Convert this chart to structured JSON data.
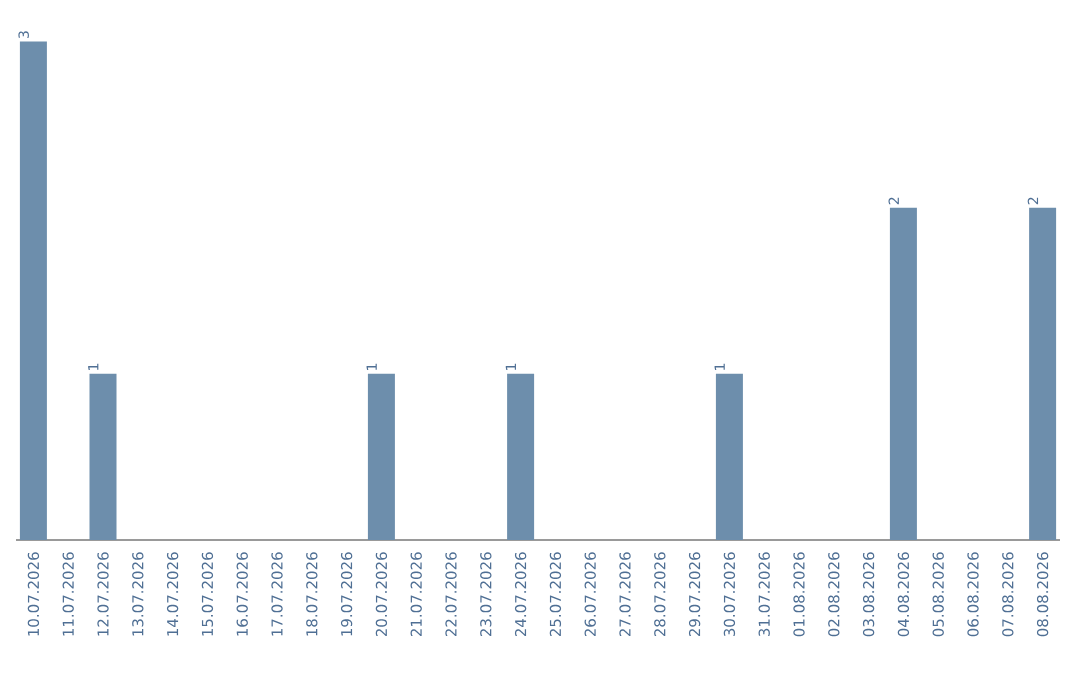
{
  "chart_data": {
    "type": "bar",
    "categories": [
      "10.07.2026",
      "11.07.2026",
      "12.07.2026",
      "13.07.2026",
      "14.07.2026",
      "15.07.2026",
      "16.07.2026",
      "17.07.2026",
      "18.07.2026",
      "19.07.2026",
      "20.07.2026",
      "21.07.2026",
      "22.07.2026",
      "23.07.2026",
      "24.07.2026",
      "25.07.2026",
      "26.07.2026",
      "27.07.2026",
      "28.07.2026",
      "29.07.2026",
      "30.07.2026",
      "31.07.2026",
      "01.08.2026",
      "02.08.2026",
      "03.08.2026",
      "04.08.2026",
      "05.08.2026",
      "06.08.2026",
      "07.08.2026",
      "08.08.2026"
    ],
    "values": [
      3,
      0,
      1,
      0,
      0,
      0,
      0,
      0,
      0,
      0,
      1,
      0,
      0,
      0,
      1,
      0,
      0,
      0,
      0,
      0,
      1,
      0,
      0,
      0,
      0,
      2,
      0,
      0,
      0,
      2
    ],
    "value_labels": [
      "3",
      null,
      "1",
      null,
      null,
      null,
      null,
      null,
      null,
      null,
      "1",
      null,
      null,
      null,
      "1",
      null,
      null,
      null,
      null,
      null,
      "1",
      null,
      null,
      null,
      null,
      "2",
      null,
      null,
      null,
      "2"
    ],
    "color": "#6d8eac"
  }
}
